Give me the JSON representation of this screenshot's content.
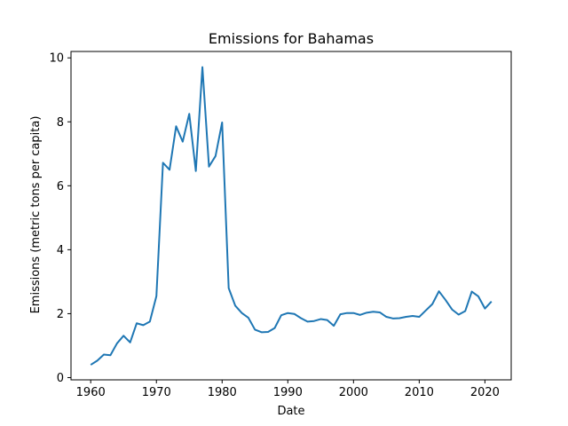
{
  "chart_data": {
    "type": "line",
    "title": "Emissions for Bahamas",
    "xlabel": "Date",
    "ylabel": "Emissions (metric tons per capita)",
    "xlim": [
      1957,
      2024
    ],
    "ylim": [
      -0.07,
      10.2
    ],
    "xticks": [
      1960,
      1970,
      1980,
      1990,
      2000,
      2010,
      2020
    ],
    "yticks": [
      0,
      2,
      4,
      6,
      8,
      10
    ],
    "grid": false,
    "series": [
      {
        "color": "#1f77b4",
        "x": [
          1960,
          1961,
          1962,
          1963,
          1964,
          1965,
          1966,
          1967,
          1968,
          1969,
          1970,
          1971,
          1972,
          1973,
          1974,
          1975,
          1976,
          1977,
          1978,
          1979,
          1980,
          1981,
          1982,
          1983,
          1984,
          1985,
          1986,
          1987,
          1988,
          1989,
          1990,
          1991,
          1992,
          1993,
          1994,
          1995,
          1996,
          1997,
          1998,
          1999,
          2000,
          2001,
          2002,
          2003,
          2004,
          2005,
          2006,
          2007,
          2008,
          2009,
          2010,
          2011,
          2012,
          2013,
          2014,
          2015,
          2016,
          2017,
          2018,
          2019,
          2020,
          2021
        ],
        "y": [
          0.4,
          0.53,
          0.72,
          0.7,
          1.07,
          1.31,
          1.1,
          1.7,
          1.64,
          1.75,
          2.55,
          6.72,
          6.5,
          7.86,
          7.38,
          8.25,
          6.46,
          9.71,
          6.6,
          6.93,
          7.98,
          2.8,
          2.25,
          2.02,
          1.87,
          1.5,
          1.42,
          1.43,
          1.55,
          1.95,
          2.02,
          1.99,
          1.86,
          1.75,
          1.77,
          1.83,
          1.8,
          1.62,
          1.98,
          2.02,
          2.02,
          1.96,
          2.03,
          2.06,
          2.04,
          1.9,
          1.85,
          1.86,
          1.9,
          1.93,
          1.9,
          2.1,
          2.3,
          2.7,
          2.43,
          2.13,
          1.97,
          2.08,
          2.69,
          2.54,
          2.16,
          2.38
        ]
      }
    ]
  }
}
